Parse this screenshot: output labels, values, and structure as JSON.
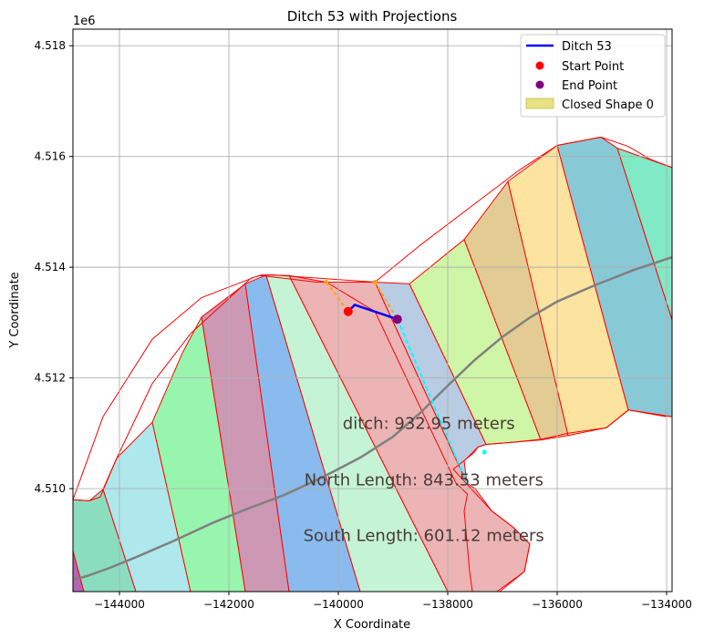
{
  "chart_data": {
    "type": "line",
    "title": "Ditch 53 with Projections",
    "xlabel": "X Coordinate",
    "ylabel": "Y Coordinate",
    "offset_label": "1e6",
    "xlim": [
      -144850,
      -133900
    ],
    "ylim": [
      4508140,
      4518300
    ],
    "grid": true,
    "legend_location": "top-right",
    "x_ticks": [
      -144000,
      -142000,
      -140000,
      -138000,
      -136000,
      -134000
    ],
    "x_tick_labels": [
      "−144000",
      "−142000",
      "−140000",
      "−138000",
      "−136000",
      "−134000"
    ],
    "y_ticks": [
      4510000,
      4512000,
      4514000,
      4516000,
      4518000
    ],
    "y_tick_labels": [
      "4.510",
      "4.512",
      "4.514",
      "4.516",
      "4.518"
    ],
    "legend": [
      {
        "label": "Ditch 53",
        "kind": "line",
        "color": "#0000ff"
      },
      {
        "label": "Start Point",
        "kind": "marker",
        "color": "#ff0000"
      },
      {
        "label": "End Point",
        "kind": "marker",
        "color": "#800080"
      },
      {
        "label": "Closed Shape 0",
        "kind": "patch",
        "color": "#e5e184"
      }
    ],
    "ditch": {
      "x": [
        -139820,
        -139700,
        -138920
      ],
      "y": [
        4513200,
        4513320,
        4513060
      ],
      "color": "#0000ff"
    },
    "start_point": {
      "x": -139820,
      "y": 4513200,
      "color": "#ff0000"
    },
    "end_point": {
      "x": -138920,
      "y": 4513060,
      "color": "#800080"
    },
    "projection_north": {
      "x": [
        -139330,
        -138920
      ],
      "y": [
        4513730,
        4513060
      ],
      "color": "#ffa500"
    },
    "projection_south": {
      "x": [
        -140220,
        -139820
      ],
      "y": [
        4513730,
        4513200
      ],
      "color": "#ffa500"
    },
    "projection_dashed": {
      "x": [
        -138920,
        -137650
      ],
      "y": [
        4513060,
        4510100
      ],
      "color": "#00ffff",
      "end_marker": {
        "x": -137330,
        "y": 4510660
      }
    },
    "gray_line": {
      "x": [
        -144850,
        -144600,
        -144200,
        -143700,
        -143000,
        -142300,
        -141700,
        -141000,
        -140300,
        -139600,
        -139000,
        -138500,
        -138000,
        -137500,
        -137000,
        -136500,
        -136000,
        -135300,
        -134600,
        -133900
      ],
      "y": [
        4508350,
        4508420,
        4508560,
        4508760,
        4509060,
        4509380,
        4509620,
        4509880,
        4510200,
        4510560,
        4510940,
        4511370,
        4511860,
        4512330,
        4512740,
        4513090,
        4513380,
        4513680,
        4513950,
        4514180
      ],
      "color": "#808080"
    },
    "outline": {
      "x": [
        -144850,
        -144550,
        -144350,
        -144050,
        -143400,
        -142700,
        -142150,
        -141600,
        -141400,
        -141200,
        -139330,
        -138500,
        -137700,
        -136700,
        -136000,
        -135200,
        -134700,
        -134300,
        -133900,
        -133900,
        -134700,
        -134000,
        -134700,
        -135100,
        -135800,
        -136300,
        -136900,
        -137300,
        -137450,
        -137520,
        -137900,
        -137200,
        -136800,
        -136500,
        -136600,
        -137100,
        -137200,
        -137550,
        -137600,
        -137700,
        -137640,
        -137850,
        -139330,
        -140220,
        -140300,
        -140400,
        -141350,
        -141450,
        -142500,
        -143400,
        -144300,
        -144850
      ],
      "y": [
        4509800,
        4509780,
        4509850,
        4510550,
        4511900,
        4512800,
        4513300,
        4513800,
        4513860,
        4513860,
        4513730,
        4514400,
        4515000,
        4515750,
        4516200,
        4516350,
        4516180,
        4515950,
        4515800,
        4511300,
        4511420,
        4511300,
        4511420,
        4511100,
        4511000,
        4510890,
        4510830,
        4510800,
        4510750,
        4510650,
        4510350,
        4509600,
        4509300,
        4509000,
        4508500,
        4508100,
        4508140,
        4508140,
        4508500,
        4509600,
        4509900,
        4510100,
        4513200,
        4513730,
        4513730,
        4513730,
        4513840,
        4513850,
        4513450,
        4512700,
        4511300,
        4509800
      ],
      "color": "#ff0000"
    },
    "shapes": [
      {
        "name": "strip",
        "color": "#b565b5",
        "points": [
          [
            -144850,
            4508140
          ],
          [
            -144650,
            4508140
          ],
          [
            -144850,
            4508880
          ]
        ]
      },
      {
        "name": "strip",
        "color": "#8adebf",
        "points": [
          [
            -144850,
            4508880
          ],
          [
            -144650,
            4508140
          ],
          [
            -143700,
            4508140
          ],
          [
            -144300,
            4509990
          ],
          [
            -144550,
            4509780
          ],
          [
            -144850,
            4509800
          ]
        ]
      },
      {
        "name": "strip",
        "color": "#aee8ec",
        "points": [
          [
            -144300,
            4509990
          ],
          [
            -143700,
            4508140
          ],
          [
            -142700,
            4508140
          ],
          [
            -143400,
            4511200
          ],
          [
            -144050,
            4510550
          ]
        ]
      },
      {
        "name": "strip",
        "color": "#98f5ae",
        "points": [
          [
            -143400,
            4511200
          ],
          [
            -142700,
            4508140
          ],
          [
            -141700,
            4508140
          ],
          [
            -142500,
            4513100
          ],
          [
            -142850,
            4512450
          ]
        ]
      },
      {
        "name": "strip",
        "color": "#cd98b3",
        "points": [
          [
            -142500,
            4513100
          ],
          [
            -141700,
            4508140
          ],
          [
            -140900,
            4508140
          ],
          [
            -141700,
            4513700
          ]
        ]
      },
      {
        "name": "strip",
        "color": "#89bbee",
        "points": [
          [
            -141700,
            4513700
          ],
          [
            -140900,
            4508140
          ],
          [
            -139600,
            4508140
          ],
          [
            -141320,
            4513860
          ]
        ]
      },
      {
        "name": "strip",
        "color": "#c4f4d5",
        "points": [
          [
            -141320,
            4513860
          ],
          [
            -139600,
            4508140
          ],
          [
            -138000,
            4508140
          ],
          [
            -140900,
            4513850
          ]
        ]
      },
      {
        "name": "strip",
        "color": "#ecb4b5",
        "points": [
          [
            -140900,
            4513850
          ],
          [
            -138000,
            4508140
          ],
          [
            -137100,
            4508140
          ],
          [
            -136600,
            4508500
          ],
          [
            -136500,
            4509000
          ],
          [
            -136800,
            4509300
          ],
          [
            -137200,
            4509600
          ],
          [
            -137500,
            4510000
          ],
          [
            -137650,
            4510100
          ],
          [
            -139330,
            4513730
          ],
          [
            -140220,
            4513730
          ]
        ]
      },
      {
        "name": "strip",
        "color": "#b8cce3",
        "points": [
          [
            -139330,
            4513730
          ],
          [
            -137650,
            4510100
          ],
          [
            -137700,
            4510500
          ],
          [
            -137450,
            4510750
          ],
          [
            -137300,
            4510800
          ],
          [
            -138700,
            4513700
          ]
        ]
      },
      {
        "name": "strip",
        "color": "#cff5a6",
        "points": [
          [
            -138700,
            4513700
          ],
          [
            -137300,
            4510800
          ],
          [
            -136900,
            4510830
          ],
          [
            -136300,
            4510880
          ],
          [
            -137700,
            4514500
          ]
        ]
      },
      {
        "name": "strip",
        "color": "#e3cc93",
        "points": [
          [
            -137700,
            4514500
          ],
          [
            -136300,
            4510880
          ],
          [
            -135800,
            4510960
          ],
          [
            -136900,
            4515550
          ]
        ]
      },
      {
        "name": "strip",
        "color": "#fce39f",
        "points": [
          [
            -136900,
            4515550
          ],
          [
            -135800,
            4510960
          ],
          [
            -135100,
            4511100
          ],
          [
            -134700,
            4511420
          ],
          [
            -136000,
            4516200
          ]
        ]
      },
      {
        "name": "strip",
        "color": "#88c9d6",
        "points": [
          [
            -136000,
            4516200
          ],
          [
            -134700,
            4511420
          ],
          [
            -133900,
            4511300
          ],
          [
            -133900,
            4513050
          ],
          [
            -134900,
            4516150
          ],
          [
            -135200,
            4516350
          ]
        ]
      },
      {
        "name": "strip",
        "color": "#80e9c5",
        "points": [
          [
            -134900,
            4516150
          ],
          [
            -133900,
            4513050
          ],
          [
            -133900,
            4515800
          ]
        ]
      }
    ],
    "annotations": [
      {
        "text": "ditch: 932.95 meters",
        "x": -139920,
        "y": 4511080
      },
      {
        "text": "North Length: 843.53 meters",
        "x": -140620,
        "y": 4510060
      },
      {
        "text": "South Length: 601.12 meters",
        "x": -140640,
        "y": 4509050
      }
    ]
  }
}
